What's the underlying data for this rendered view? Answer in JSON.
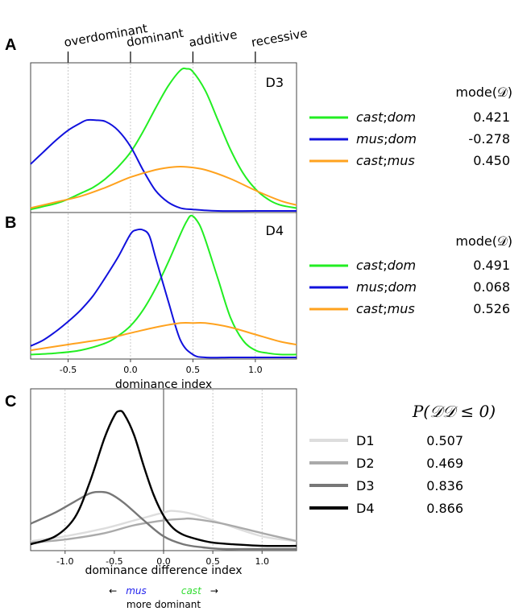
{
  "panels": {
    "A": {
      "label": "A",
      "tag": "D3",
      "header": "mode(𝒟)",
      "categories": [
        "overdominant",
        "dominant",
        "additive",
        "recessive"
      ],
      "category_values": [
        -0.5,
        0.0,
        0.5,
        1.0
      ],
      "series": [
        {
          "name_a": "cast",
          "sep": ";",
          "name_b": "dom",
          "value": "0.421",
          "color": "#22ee22"
        },
        {
          "name_a": "mus",
          "sep": ";",
          "name_b": "dom",
          "value": "-0.278",
          "color": "#1111dd"
        },
        {
          "name_a": "cast",
          "sep": ";",
          "name_b": "mus",
          "value": "0.450",
          "color": "#ffa21e"
        }
      ]
    },
    "B": {
      "label": "B",
      "tag": "D4",
      "header": "mode(𝒟)",
      "xlabel": "dominance index",
      "series": [
        {
          "name_a": "cast",
          "sep": ";",
          "name_b": "dom",
          "value": "0.491",
          "color": "#22ee22"
        },
        {
          "name_a": "mus",
          "sep": ";",
          "name_b": "dom",
          "value": "0.068",
          "color": "#1111dd"
        },
        {
          "name_a": "cast",
          "sep": ";",
          "name_b": "mus",
          "value": "0.526",
          "color": "#ffa21e"
        }
      ]
    },
    "C": {
      "label": "C",
      "header": "P(𝒟𝒟 ≤ 0)",
      "xlabel": "dominance difference index",
      "note_mus": "mus",
      "note_cast": "cast",
      "note_arrow_left": "←",
      "note_arrow_right": "→",
      "note_sub": "more dominant",
      "note_mus_color": "#2222ee",
      "note_cast_color": "#33dd33",
      "series": [
        {
          "name": "D1",
          "value": "0.507",
          "color": "#dddddd"
        },
        {
          "name": "D2",
          "value": "0.469",
          "color": "#aaaaaa"
        },
        {
          "name": "D3",
          "value": "0.836",
          "color": "#777777"
        },
        {
          "name": "D4",
          "value": "0.866",
          "color": "#000000"
        }
      ]
    }
  },
  "chart_data": [
    {
      "type": "line",
      "panel": "A",
      "xlim": [
        -0.8,
        1.33
      ],
      "ylim": [
        0,
        1
      ],
      "grid_x": [
        -0.5,
        0.0,
        0.5,
        1.0
      ],
      "series": [
        {
          "name": "cast;dom",
          "color": "#22ee22",
          "x": [
            -0.8,
            -0.7,
            -0.6,
            -0.5,
            -0.4,
            -0.3,
            -0.2,
            -0.1,
            0.0,
            0.1,
            0.2,
            0.3,
            0.4,
            0.45,
            0.5,
            0.6,
            0.7,
            0.8,
            0.9,
            1.0,
            1.1,
            1.2,
            1.33
          ],
          "y": [
            0.01,
            0.03,
            0.05,
            0.08,
            0.12,
            0.16,
            0.22,
            0.3,
            0.4,
            0.54,
            0.7,
            0.85,
            0.96,
            0.97,
            0.95,
            0.82,
            0.62,
            0.42,
            0.26,
            0.15,
            0.08,
            0.04,
            0.02
          ]
        },
        {
          "name": "mus;dom",
          "color": "#1111dd",
          "x": [
            -0.8,
            -0.7,
            -0.6,
            -0.5,
            -0.4,
            -0.35,
            -0.28,
            -0.2,
            -0.1,
            0.0,
            0.1,
            0.2,
            0.3,
            0.4,
            0.5,
            0.7,
            1.0,
            1.33
          ],
          "y": [
            0.32,
            0.4,
            0.48,
            0.55,
            0.6,
            0.62,
            0.62,
            0.61,
            0.55,
            0.44,
            0.28,
            0.14,
            0.06,
            0.02,
            0.01,
            0.0,
            0.0,
            0.0
          ]
        },
        {
          "name": "cast;mus",
          "color": "#ffa21e",
          "x": [
            -0.8,
            -0.6,
            -0.4,
            -0.2,
            0.0,
            0.2,
            0.35,
            0.45,
            0.6,
            0.8,
            1.0,
            1.2,
            1.33
          ],
          "y": [
            0.02,
            0.06,
            0.1,
            0.16,
            0.23,
            0.28,
            0.3,
            0.3,
            0.28,
            0.22,
            0.14,
            0.07,
            0.04
          ]
        }
      ]
    },
    {
      "type": "line",
      "panel": "B",
      "xlim": [
        -0.8,
        1.33
      ],
      "ylim": [
        0,
        1
      ],
      "grid_x": [
        -0.5,
        0.0,
        0.5,
        1.0
      ],
      "xticks": [
        "-0.5",
        "0.0",
        "0.5",
        "1.0"
      ],
      "xlabel": "dominance index",
      "series": [
        {
          "name": "cast;dom",
          "color": "#22ee22",
          "x": [
            -0.8,
            -0.6,
            -0.4,
            -0.2,
            -0.1,
            0.0,
            0.1,
            0.2,
            0.3,
            0.4,
            0.45,
            0.49,
            0.55,
            0.6,
            0.7,
            0.8,
            0.9,
            1.0,
            1.1,
            1.2,
            1.33
          ],
          "y": [
            0.02,
            0.03,
            0.05,
            0.1,
            0.15,
            0.22,
            0.33,
            0.48,
            0.66,
            0.86,
            0.95,
            0.99,
            0.93,
            0.82,
            0.55,
            0.28,
            0.12,
            0.05,
            0.03,
            0.02,
            0.02
          ]
        },
        {
          "name": "mus;dom",
          "color": "#1111dd",
          "x": [
            -0.8,
            -0.7,
            -0.6,
            -0.5,
            -0.4,
            -0.3,
            -0.2,
            -0.1,
            0.0,
            0.05,
            0.1,
            0.15,
            0.2,
            0.3,
            0.4,
            0.5,
            0.6,
            0.8,
            1.0,
            1.33
          ],
          "y": [
            0.08,
            0.12,
            0.18,
            0.25,
            0.33,
            0.43,
            0.56,
            0.7,
            0.86,
            0.89,
            0.89,
            0.85,
            0.7,
            0.4,
            0.12,
            0.02,
            0.0,
            0.0,
            0.0,
            0.0
          ]
        },
        {
          "name": "cast;mus",
          "color": "#ffa21e",
          "x": [
            -0.8,
            -0.5,
            -0.2,
            0.0,
            0.2,
            0.4,
            0.5,
            0.6,
            0.8,
            1.0,
            1.2,
            1.33
          ],
          "y": [
            0.05,
            0.09,
            0.13,
            0.17,
            0.21,
            0.24,
            0.24,
            0.24,
            0.21,
            0.16,
            0.11,
            0.09
          ]
        }
      ]
    },
    {
      "type": "line",
      "panel": "C",
      "xlim": [
        -1.35,
        1.35
      ],
      "ylim": [
        0,
        1
      ],
      "grid_x": [
        -1.0,
        0.5,
        1.0
      ],
      "zero_line": 0.0,
      "xticks": [
        "-1.0",
        "-0.5",
        "0.0",
        "0.5",
        "1.0"
      ],
      "xlabel": "dominance difference index",
      "series": [
        {
          "name": "D1",
          "color": "#dddddd",
          "x": [
            -1.35,
            -1.0,
            -0.6,
            -0.3,
            0.0,
            0.1,
            0.3,
            0.6,
            1.0,
            1.35
          ],
          "y": [
            0.05,
            0.08,
            0.13,
            0.18,
            0.23,
            0.24,
            0.22,
            0.16,
            0.08,
            0.05
          ]
        },
        {
          "name": "D2",
          "color": "#aaaaaa",
          "x": [
            -1.35,
            -1.0,
            -0.6,
            -0.3,
            0.0,
            0.2,
            0.3,
            0.6,
            1.0,
            1.35
          ],
          "y": [
            0.04,
            0.06,
            0.1,
            0.15,
            0.18,
            0.19,
            0.19,
            0.16,
            0.1,
            0.05
          ]
        },
        {
          "name": "D3",
          "color": "#777777",
          "x": [
            -1.35,
            -1.1,
            -0.9,
            -0.75,
            -0.65,
            -0.55,
            -0.4,
            -0.2,
            0.0,
            0.2,
            0.4,
            0.6,
            0.9,
            1.35
          ],
          "y": [
            0.16,
            0.23,
            0.3,
            0.35,
            0.36,
            0.35,
            0.29,
            0.18,
            0.08,
            0.03,
            0.01,
            0.0,
            0.0,
            0.0
          ]
        },
        {
          "name": "D4",
          "color": "#000000",
          "x": [
            -1.35,
            -1.1,
            -0.9,
            -0.75,
            -0.6,
            -0.5,
            -0.45,
            -0.4,
            -0.3,
            -0.2,
            -0.1,
            0.0,
            0.1,
            0.2,
            0.35,
            0.5,
            0.7,
            1.0,
            1.35
          ],
          "y": [
            0.03,
            0.08,
            0.2,
            0.42,
            0.7,
            0.84,
            0.87,
            0.85,
            0.72,
            0.52,
            0.34,
            0.21,
            0.13,
            0.09,
            0.06,
            0.04,
            0.03,
            0.02,
            0.02
          ]
        }
      ]
    }
  ]
}
